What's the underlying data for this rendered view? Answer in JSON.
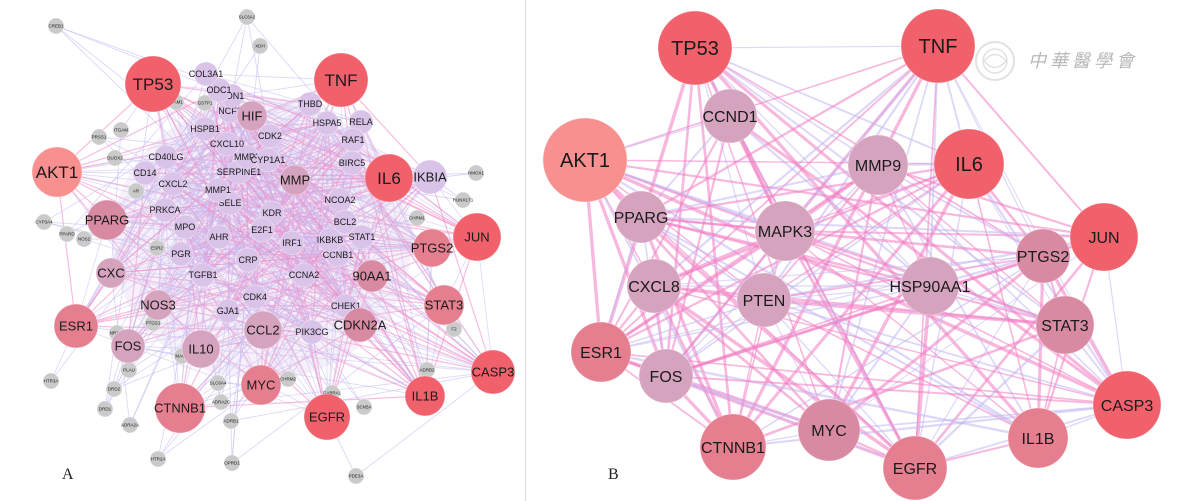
{
  "colors": {
    "node_hot": "#f0616c",
    "node_warm": "#e57f8f",
    "node_mid": "#d98aa3",
    "node_pale": "#d6a3bf",
    "node_lilac": "#d9c3e8",
    "node_gray": "#cacaca",
    "akt1": "#f7908e",
    "edge_pink": "#f27ec2",
    "edge_lilac": "#c3b7f2"
  },
  "panel_a": {
    "letter": "A",
    "hub_nodes": [
      {
        "label": "TP53",
        "tone": "hot"
      },
      {
        "label": "TNF",
        "tone": "hot"
      },
      {
        "label": "AKT1",
        "tone": "akt1"
      },
      {
        "label": "IL6",
        "tone": "hot"
      },
      {
        "label": "PPARG",
        "tone": "mid"
      },
      {
        "label": "JUN",
        "tone": "hot"
      },
      {
        "label": "PTGS2",
        "tone": "warm"
      },
      {
        "label": "STAT3",
        "tone": "warm"
      },
      {
        "label": "ESR1",
        "tone": "warm"
      },
      {
        "label": "CASP3",
        "tone": "hot"
      },
      {
        "label": "FOS",
        "tone": "pale"
      },
      {
        "label": "IL10",
        "tone": "pale"
      },
      {
        "label": "CCL2",
        "tone": "pale"
      },
      {
        "label": "MYC",
        "tone": "warm"
      },
      {
        "label": "IL1B",
        "tone": "hot"
      },
      {
        "label": "CTNNB1",
        "tone": "warm"
      },
      {
        "label": "EGFR",
        "tone": "hot"
      },
      {
        "label": "CDKN2A",
        "tone": "mid"
      },
      {
        "label": "90AA1",
        "tone": "mid"
      },
      {
        "label": "CXC",
        "tone": "pale"
      },
      {
        "label": "NOS3",
        "tone": "pale"
      },
      {
        "label": "IKBIA",
        "tone": "lilac"
      },
      {
        "label": "HIF",
        "tone": "pale"
      },
      {
        "label": "MMP",
        "tone": "pale"
      }
    ],
    "inner_nodes": [
      "SERPINE1",
      "HSPA5",
      "RELA",
      "CDK2",
      "HSPB1",
      "CD40LG",
      "MMP3",
      "CYP1A1",
      "SELE",
      "KDR",
      "AHR",
      "MPO",
      "PGR",
      "CRP",
      "TGFB1",
      "CDK4",
      "GJA1",
      "CCNB1",
      "CCNA2",
      "CHEK1",
      "IRF1",
      "RAF1",
      "BIRC5",
      "NCOA2",
      "BCL2",
      "E2F1",
      "MET",
      "THBD",
      "NCF1",
      "PON1",
      "ODC1",
      "COL3A1",
      "CXCL10",
      "CD14",
      "CXCL2",
      "MMP1",
      "PRKCA",
      "PIK3CG",
      "IKBKB",
      "STAT1"
    ],
    "outer_nodes": [
      "CREB1",
      "XDH",
      "HTR3A",
      "DRD2",
      "DRD1",
      "ADRA2A",
      "HTR2A",
      "OPRD1",
      "PDE3A",
      "SCN5A",
      "GABRA1",
      "SLC6A4",
      "ADRB1",
      "ADRA2C",
      "CHRM2",
      "MAOA",
      "NR3C2",
      "PTGS1",
      "ITGAM",
      "PRSS1",
      "DUOX2",
      "RUNX1T1",
      "CHRM1",
      "ADRB2",
      "SLC6A2",
      "F2",
      "HMOX1",
      "CYP3A4",
      "PPARD",
      "NOS2",
      "ICAM1",
      "GSTP1",
      "AR",
      "ESR2",
      "PLAU"
    ]
  },
  "panel_b": {
    "letter": "B",
    "nodes": [
      {
        "label": "TP53",
        "tone": "hot"
      },
      {
        "label": "TNF",
        "tone": "hot"
      },
      {
        "label": "CCND1",
        "tone": "pale"
      },
      {
        "label": "AKT1",
        "tone": "akt1"
      },
      {
        "label": "MMP9",
        "tone": "pale"
      },
      {
        "label": "IL6",
        "tone": "hot"
      },
      {
        "label": "PPARG",
        "tone": "pale"
      },
      {
        "label": "MAPK3",
        "tone": "pale"
      },
      {
        "label": "JUN",
        "tone": "hot"
      },
      {
        "label": "PTGS2",
        "tone": "mid"
      },
      {
        "label": "CXCL8",
        "tone": "pale"
      },
      {
        "label": "PTEN",
        "tone": "pale"
      },
      {
        "label": "HSP90AA1",
        "tone": "pale"
      },
      {
        "label": "STAT3",
        "tone": "mid"
      },
      {
        "label": "ESR1",
        "tone": "warm"
      },
      {
        "label": "FOS",
        "tone": "pale"
      },
      {
        "label": "CASP3",
        "tone": "hot"
      },
      {
        "label": "MYC",
        "tone": "mid"
      },
      {
        "label": "IL1B",
        "tone": "warm"
      },
      {
        "label": "CTNNB1",
        "tone": "warm"
      },
      {
        "label": "EGFR",
        "tone": "warm"
      }
    ]
  },
  "watermark": {
    "text": "中華醫學會"
  }
}
